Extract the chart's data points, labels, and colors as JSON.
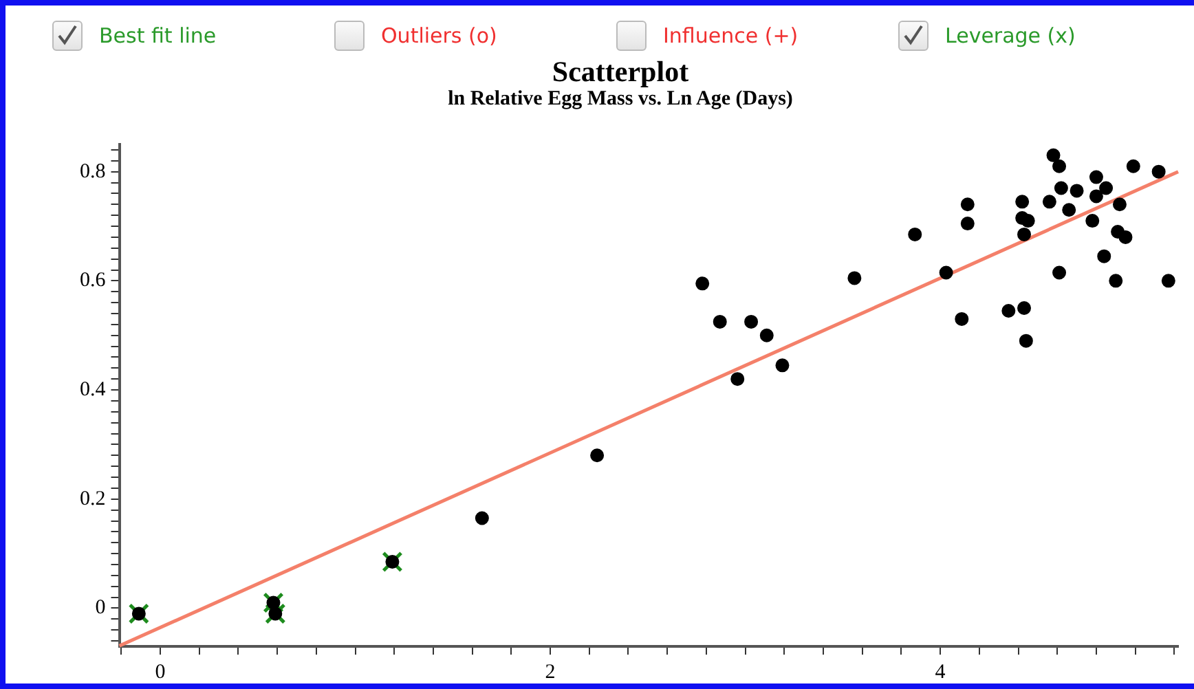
{
  "chart_data": {
    "type": "scatter",
    "title": "Scatterplot",
    "subtitle": "ln Relative Egg Mass vs. Ln Age (Days)",
    "annotations": [
      "Outliers (o)",
      "Influence (+)"
    ],
    "legend": "top",
    "grid": false,
    "xlim": [
      -0.21,
      5.22
    ],
    "ylim": [
      -0.07,
      0.85
    ],
    "xticks": [
      {
        "value": -0.2,
        "label": null
      },
      0,
      {
        "value": 0.2,
        "label": null
      },
      {
        "value": 0.4,
        "label": null
      },
      {
        "value": 0.6,
        "label": null
      },
      {
        "value": 0.8,
        "label": null
      },
      {
        "value": 1,
        "label": null
      },
      {
        "value": 1.2,
        "label": null
      },
      {
        "value": 1.4,
        "label": null
      },
      {
        "value": 1.6,
        "label": null
      },
      {
        "value": 1.8,
        "label": null
      },
      2,
      {
        "value": 2.2,
        "label": null
      },
      {
        "value": 2.4,
        "label": null
      },
      {
        "value": 2.6,
        "label": null
      },
      {
        "value": 2.8,
        "label": null
      },
      {
        "value": 3,
        "label": null
      },
      {
        "value": 3.2,
        "label": null
      },
      {
        "value": 3.4,
        "label": null
      },
      {
        "value": 3.6,
        "label": null
      },
      {
        "value": 3.8,
        "label": null
      },
      4,
      {
        "value": 4.2,
        "label": null
      },
      {
        "value": 4.4,
        "label": null
      },
      {
        "value": 4.6,
        "label": null
      },
      {
        "value": 4.8,
        "label": null
      },
      {
        "value": 5,
        "label": null
      },
      {
        "value": 5.2,
        "label": null
      }
    ],
    "yticks": [
      {
        "value": -0.06,
        "label": null
      },
      {
        "value": -0.04,
        "label": null
      },
      {
        "value": -0.02,
        "label": null
      },
      0,
      {
        "value": 0.02,
        "label": null
      },
      {
        "value": 0.04,
        "label": null
      },
      {
        "value": 0.06,
        "label": null
      },
      {
        "value": 0.08,
        "label": null
      },
      {
        "value": 0.1,
        "label": null
      },
      {
        "value": 0.12,
        "label": null
      },
      {
        "value": 0.14,
        "label": null
      },
      {
        "value": 0.16,
        "label": null
      },
      {
        "value": 0.18,
        "label": null
      },
      0.2,
      {
        "value": 0.22,
        "label": null
      },
      {
        "value": 0.24,
        "label": null
      },
      {
        "value": 0.26,
        "label": null
      },
      {
        "value": 0.28,
        "label": null
      },
      {
        "value": 0.3,
        "label": null
      },
      {
        "value": 0.32,
        "label": null
      },
      {
        "value": 0.34,
        "label": null
      },
      {
        "value": 0.36,
        "label": null
      },
      {
        "value": 0.38,
        "label": null
      },
      0.4,
      {
        "value": 0.42,
        "label": null
      },
      {
        "value": 0.44,
        "label": null
      },
      {
        "value": 0.46,
        "label": null
      },
      {
        "value": 0.48,
        "label": null
      },
      {
        "value": 0.5,
        "label": null
      },
      {
        "value": 0.52,
        "label": null
      },
      {
        "value": 0.54,
        "label": null
      },
      {
        "value": 0.56,
        "label": null
      },
      {
        "value": 0.58,
        "label": null
      },
      0.6,
      {
        "value": 0.62,
        "label": null
      },
      {
        "value": 0.64,
        "label": null
      },
      {
        "value": 0.66,
        "label": null
      },
      {
        "value": 0.68,
        "label": null
      },
      {
        "value": 0.7,
        "label": null
      },
      {
        "value": 0.72,
        "label": null
      },
      {
        "value": 0.74,
        "label": null
      },
      {
        "value": 0.76,
        "label": null
      },
      {
        "value": 0.78,
        "label": null
      },
      0.8,
      {
        "value": 0.82,
        "label": null
      },
      {
        "value": 0.84,
        "label": null
      }
    ],
    "series": [
      {
        "type": "scatter",
        "color": "#000000",
        "marker": "circle",
        "x": [
          -0.11,
          0.58,
          0.59,
          1.19,
          1.65,
          2.24,
          2.78,
          2.87,
          2.96,
          3.03,
          3.11,
          3.19,
          3.56,
          3.87,
          4.03,
          4.11,
          4.14,
          4.14,
          4.35,
          4.42,
          4.43,
          4.44,
          4.43,
          4.42,
          4.45,
          4.56,
          4.58,
          4.61,
          4.61,
          4.62,
          4.66,
          4.7,
          4.78,
          4.8,
          4.8,
          4.85,
          4.84,
          4.92,
          4.9,
          4.91,
          4.95,
          4.99,
          5.12,
          5.17
        ],
        "values": [
          -0.01,
          0.01,
          -0.01,
          0.085,
          0.165,
          0.28,
          0.595,
          0.525,
          0.42,
          0.525,
          0.5,
          0.445,
          0.605,
          0.685,
          0.615,
          0.53,
          0.705,
          0.74,
          0.545,
          0.745,
          0.55,
          0.49,
          0.685,
          0.715,
          0.71,
          0.745,
          0.83,
          0.81,
          0.615,
          0.77,
          0.73,
          0.765,
          0.71,
          0.79,
          0.755,
          0.77,
          0.645,
          0.74,
          0.6,
          0.69,
          0.68,
          0.81,
          0.8,
          0.6
        ]
      },
      {
        "type": "line",
        "name": "Best fit line",
        "color": "#f4806a",
        "marker": "none",
        "line_style": "solid",
        "x": [
          -0.21,
          5.22
        ],
        "values": [
          -0.069,
          0.8
        ]
      },
      {
        "type": "scatter",
        "name": "Leverage (x)",
        "color": "#1e8c1e",
        "marker": "cross",
        "x": [
          -0.11,
          0.58,
          0.59,
          1.19
        ],
        "values": [
          -0.01,
          0.01,
          -0.01,
          0.085
        ]
      }
    ]
  }
}
